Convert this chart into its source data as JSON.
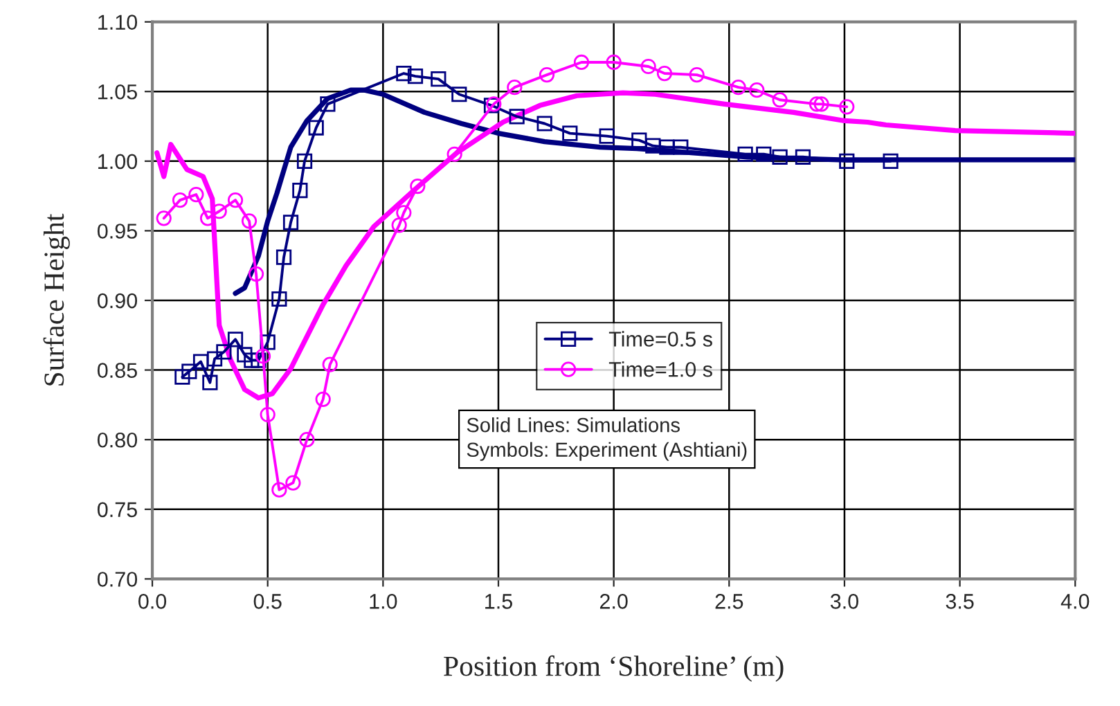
{
  "chart_data": {
    "type": "line",
    "xlabel": "Position from ‘Shoreline’ (m)",
    "ylabel": "Surface Height",
    "xlim": [
      0,
      4
    ],
    "ylim": [
      0.7,
      1.1
    ],
    "xticks": [
      {
        "value": 0,
        "label": "0.0"
      },
      {
        "value": 0.5,
        "label": "0.5"
      },
      {
        "value": 1,
        "label": "1.0"
      },
      {
        "value": 1.5,
        "label": "1.5"
      },
      {
        "value": 2,
        "label": "2.0"
      },
      {
        "value": 2.5,
        "label": "2.5"
      },
      {
        "value": 3,
        "label": "3.0"
      },
      {
        "value": 3.5,
        "label": "3.5"
      },
      {
        "value": 4,
        "label": "4.0"
      }
    ],
    "yticks": [
      {
        "value": 0.7,
        "label": "0.70"
      },
      {
        "value": 0.75,
        "label": "0.75"
      },
      {
        "value": 0.8,
        "label": "0.80"
      },
      {
        "value": 0.85,
        "label": "0.85"
      },
      {
        "value": 0.9,
        "label": "0.90"
      },
      {
        "value": 0.95,
        "label": "0.95"
      },
      {
        "value": 1.0,
        "label": "1.00"
      },
      {
        "value": 1.05,
        "label": "1.05"
      },
      {
        "value": 1.1,
        "label": "1.10"
      }
    ],
    "grid": true,
    "legend": "center",
    "annotations": [
      "Solid Lines: Simulations\nSymbols: Experiment (Ashtiani)"
    ],
    "series": [
      {
        "color": "#000080",
        "marker": "none",
        "x": [
          0.36,
          0.4,
          0.46,
          0.5,
          0.54,
          0.6,
          0.67,
          0.76,
          0.86,
          0.92,
          1.0,
          1.18,
          1.34,
          1.5,
          1.7,
          1.94,
          2.1,
          2.18,
          2.58,
          2.98,
          3.5,
          4.0
        ],
        "values": [
          0.905,
          0.909,
          0.932,
          0.957,
          0.977,
          1.01,
          1.029,
          1.045,
          1.051,
          1.051,
          1.048,
          1.035,
          1.027,
          1.02,
          1.014,
          1.01,
          1.009,
          1.008,
          1.003,
          1.001,
          1.001,
          1.001
        ]
      },
      {
        "color": "#ff00ff",
        "marker": "none",
        "x": [
          0.02,
          0.05,
          0.08,
          0.15,
          0.22,
          0.26,
          0.29,
          0.34,
          0.4,
          0.46,
          0.52,
          0.6,
          0.74,
          0.84,
          0.96,
          1.14,
          1.32,
          1.52,
          1.68,
          1.84,
          2.04,
          2.18,
          2.48,
          2.78,
          3.0,
          3.1,
          3.18,
          3.48,
          4.0
        ],
        "values": [
          1.006,
          0.989,
          1.012,
          0.994,
          0.989,
          0.973,
          0.882,
          0.857,
          0.836,
          0.83,
          0.833,
          0.851,
          0.897,
          0.925,
          0.953,
          0.98,
          1.006,
          1.028,
          1.04,
          1.047,
          1.049,
          1.048,
          1.041,
          1.035,
          1.029,
          1.028,
          1.026,
          1.022,
          1.02
        ]
      },
      {
        "name": "Time=0.5 s",
        "color": "#000080",
        "marker": "square",
        "x": [
          0.13,
          0.16,
          0.21,
          0.25,
          0.27,
          0.31,
          0.36,
          0.4,
          0.43,
          0.46,
          0.5,
          0.55,
          0.57,
          0.6,
          0.64,
          0.66,
          0.71,
          0.76,
          1.09,
          1.14,
          1.24,
          1.33,
          1.47,
          1.58,
          1.7,
          1.81,
          1.97,
          2.11,
          2.17,
          2.23,
          2.29,
          2.57,
          2.65,
          2.72,
          2.82,
          3.01,
          3.2
        ],
        "values": [
          0.845,
          0.849,
          0.856,
          0.841,
          0.858,
          0.863,
          0.872,
          0.861,
          0.857,
          0.857,
          0.87,
          0.901,
          0.931,
          0.956,
          0.979,
          1.0,
          1.024,
          1.041,
          1.063,
          1.061,
          1.059,
          1.048,
          1.04,
          1.032,
          1.027,
          1.02,
          1.018,
          1.015,
          1.011,
          1.01,
          1.01,
          1.005,
          1.005,
          1.003,
          1.003,
          1.0,
          1.0
        ]
      },
      {
        "name": "Time=1.0 s",
        "color": "#ff00ff",
        "marker": "circle",
        "x": [
          0.05,
          0.12,
          0.19,
          0.24,
          0.29,
          0.36,
          0.42,
          0.45,
          0.48,
          0.5,
          0.55,
          0.61,
          0.67,
          0.74,
          0.77,
          1.07,
          1.09,
          1.15,
          1.31,
          1.48,
          1.57,
          1.71,
          1.86,
          2.0,
          2.15,
          2.22,
          2.36,
          2.54,
          2.62,
          2.72,
          2.88,
          2.9,
          3.01
        ],
        "values": [
          0.959,
          0.972,
          0.976,
          0.959,
          0.964,
          0.972,
          0.957,
          0.919,
          0.86,
          0.818,
          0.764,
          0.769,
          0.8,
          0.829,
          0.854,
          0.954,
          0.963,
          0.982,
          1.005,
          1.041,
          1.053,
          1.062,
          1.071,
          1.071,
          1.068,
          1.063,
          1.062,
          1.053,
          1.051,
          1.044,
          1.041,
          1.041,
          1.039
        ]
      }
    ]
  }
}
